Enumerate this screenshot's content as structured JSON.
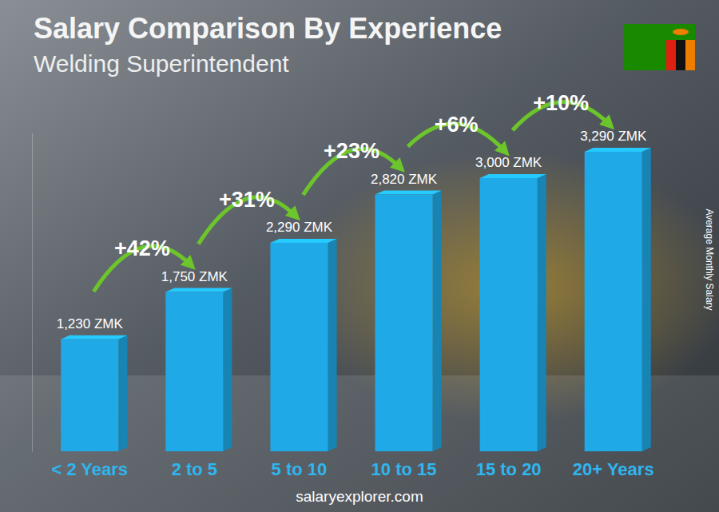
{
  "chart_data": {
    "type": "bar",
    "title": "Salary Comparison By Experience",
    "subtitle": "Welding Superintendent",
    "y_label": "Average Monthly Salary",
    "source": "salaryexplorer.com",
    "categories": [
      "< 2 Years",
      "2 to 5",
      "5 to 10",
      "10 to 15",
      "15 to 20",
      "20+ Years"
    ],
    "values": [
      1230,
      1750,
      2290,
      2820,
      3000,
      3290
    ],
    "value_labels": [
      "1,230 ZMK",
      "1,750 ZMK",
      "2,290 ZMK",
      "2,820 ZMK",
      "3,000 ZMK",
      "3,290 ZMK"
    ],
    "data_labels": true,
    "color": "#1fa9e6",
    "ylim": [
      0,
      3500
    ],
    "yticks": [],
    "tick_labels": "x",
    "growth_values": [
      42,
      31,
      23,
      6,
      10
    ],
    "growth_labels": [
      "+42%",
      "+31%",
      "+23%",
      "+6%",
      "+10%"
    ]
  }
}
